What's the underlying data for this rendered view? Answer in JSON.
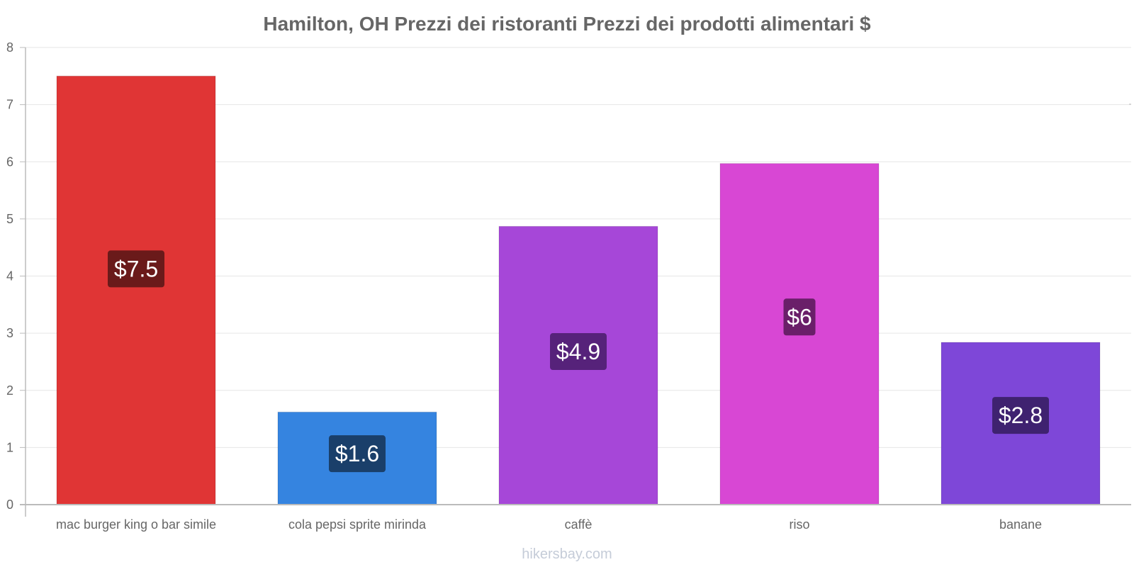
{
  "chart_data": {
    "type": "bar",
    "title": "Hamilton, OH Prezzi dei ristoranti Prezzi dei prodotti alimentari $",
    "categories": [
      "mac burger king o bar simile",
      "cola pepsi sprite mirinda",
      "caffè",
      "riso",
      "banane"
    ],
    "values": [
      7.5,
      1.62,
      4.87,
      5.97,
      2.84
    ],
    "value_labels": [
      "$7.5",
      "$1.6",
      "$4.9",
      "$6",
      "$2.8"
    ],
    "bar_colors": [
      "#e03535",
      "#3584e0",
      "#a647d8",
      "#d847d4",
      "#7e47d8"
    ],
    "label_colors": [
      "#6a1a1a",
      "#1a3f6a",
      "#56227a",
      "#6a1f69",
      "#3f2270"
    ],
    "ylim": [
      0,
      8
    ],
    "yticks": [
      "0",
      "1",
      "2",
      "3",
      "4",
      "5",
      "6",
      "7",
      "8"
    ],
    "xlabel": "",
    "ylabel": "",
    "grid": true
  },
  "watermark": "hikersbay.com"
}
